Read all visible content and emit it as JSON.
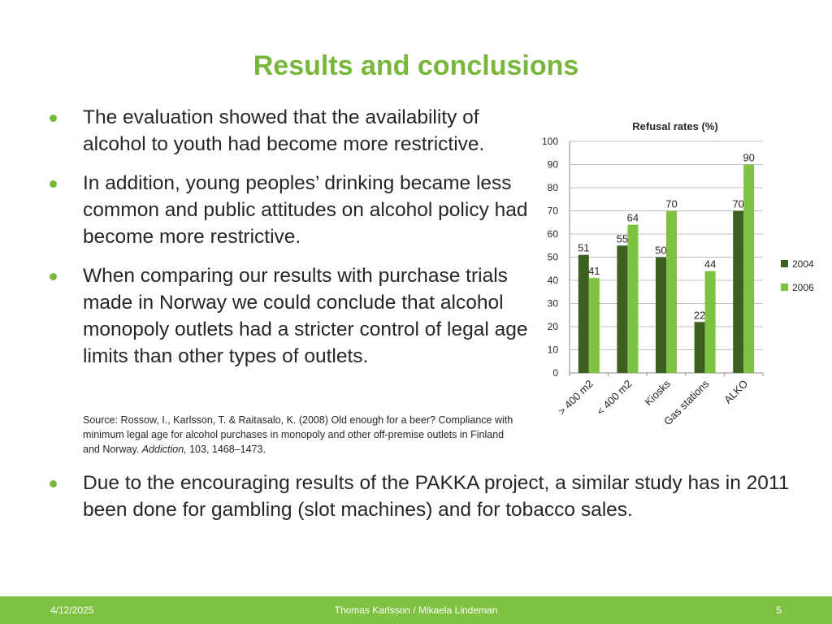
{
  "slide": {
    "title": "Results and conclusions",
    "bullets": [
      "The evaluation showed that the availability of alcohol to youth had become more restrictive.",
      "In addition, young peoples’ drinking became less common and public attitudes on alcohol policy had become more restrictive.",
      "When comparing our results with purchase trials made in Norway we could conclude that alcohol monopoly outlets had a stricter control of legal age limits than other types of outlets."
    ],
    "source": {
      "text": "Source: Rossow, I., Karlsson, T. & Raitasalo, K. (2008) Old enough for a beer? Compliance with minimum legal age for alcohol purchases in monopoly and other off-premise outlets in Finland and Norway. ",
      "journal": "Addiction,",
      "tail": " 103, 1468–1473."
    },
    "final_bullet": "Due to the encouraging results of the PAKKA project, a similar study has in 2011 been done for gambling (slot machines) and for tobacco sales.",
    "accent_color": "#78b73c"
  },
  "footer": {
    "date": "4/12/2025",
    "authors": "Thomas Karlsson / Mikaela Lindeman",
    "page": "5",
    "color": "#7fc241"
  },
  "chart_data": {
    "type": "bar",
    "title": "Refusal rates (%)",
    "categories": [
      "> 400 m2",
      "< 400 m2",
      "Kiosks",
      "Gas stations",
      "ALKO"
    ],
    "series": [
      {
        "name": "2004",
        "values": [
          51,
          55,
          50,
          22,
          70
        ],
        "color": "#3c6020"
      },
      {
        "name": "2006",
        "values": [
          41,
          64,
          70,
          44,
          90
        ],
        "color": "#7fc241"
      }
    ],
    "ylim": [
      0,
      100
    ],
    "yticks": [
      0,
      10,
      20,
      30,
      40,
      50,
      60,
      70,
      80,
      90,
      100
    ],
    "grid": true,
    "legend": "right"
  }
}
